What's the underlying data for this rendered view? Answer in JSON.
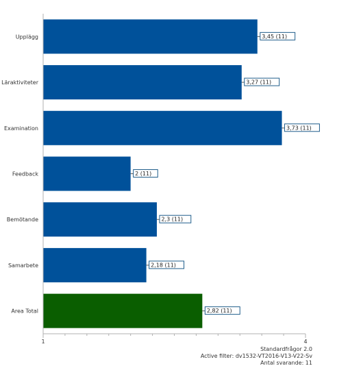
{
  "chart_data": {
    "type": "bar",
    "orientation": "horizontal",
    "categories": [
      "Upplägg",
      "Läraktiviteter",
      "Examination",
      "Feedback",
      "Bemötande",
      "Samarbete",
      "Area Total"
    ],
    "values": [
      3.45,
      3.27,
      3.73,
      2.0,
      2.3,
      2.18,
      2.82
    ],
    "data_labels": [
      "3,45 (11)",
      "3,27 (11)",
      "3,73 (11)",
      "2 (11)",
      "2,3 (11)",
      "2,18 (11)",
      "2,82 (11)"
    ],
    "bar_colors": [
      "#00519a",
      "#00519a",
      "#00519a",
      "#00519a",
      "#00519a",
      "#00519a",
      "#0a5e00"
    ],
    "xlim": [
      1,
      4
    ],
    "x_tick_labels": [
      "1",
      "4"
    ],
    "title": "",
    "xlabel": "",
    "ylabel": ""
  },
  "footer": {
    "line1": "Standardfrågor 2.0",
    "line2": "Active filter: dv1532-VT2016-V13-V22-Sv",
    "line3": "Antal svarande: 11"
  }
}
